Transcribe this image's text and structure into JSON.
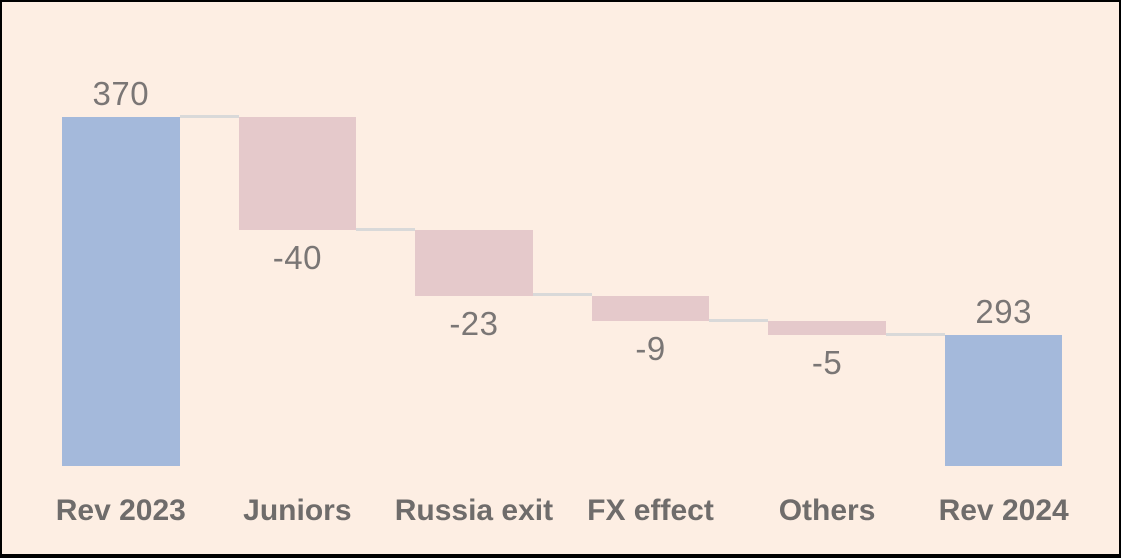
{
  "frame": {
    "background": "#fdeee3",
    "border_color": "#000000"
  },
  "chart_data": {
    "type": "bar",
    "subtype": "waterfall",
    "title": "",
    "xlabel": "",
    "ylabel": "",
    "grid": false,
    "legend": false,
    "axes_visible": false,
    "ylim": [
      247,
      370
    ],
    "categories": [
      "Rev 2023",
      "Juniors",
      "Russia exit",
      "FX effect",
      "Others",
      "Rev 2024"
    ],
    "values": [
      370,
      -40,
      -23,
      -9,
      -5,
      293
    ],
    "bar_roles": [
      "total",
      "decrease",
      "decrease",
      "decrease",
      "decrease",
      "total"
    ],
    "value_labels": [
      "370",
      "-40",
      "-23",
      "-9",
      "-5",
      "293"
    ],
    "running_totals": [
      370,
      330,
      307,
      298,
      293,
      293
    ],
    "colors": {
      "total_bar": "#a4b9db",
      "decrease_bar": "#e5c9cb",
      "connector": "#d9d9d9",
      "value_label_text": "#7a7675",
      "category_label_text": "#6f6c6b",
      "background": "#fdeee3"
    }
  }
}
